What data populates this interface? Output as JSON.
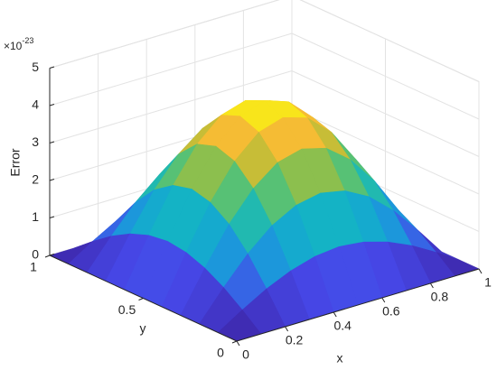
{
  "chart_data": {
    "type": "surface3d",
    "zlabel": "Error",
    "xlabel": "x",
    "ylabel": "y",
    "zexponent": {
      "base": "×10",
      "power": "-23"
    },
    "x": [
      0,
      0.1,
      0.2,
      0.3,
      0.4,
      0.5,
      0.6,
      0.7,
      0.8,
      0.9,
      1
    ],
    "y": [
      0,
      0.1,
      0.2,
      0.3,
      0.4,
      0.5,
      0.6,
      0.7,
      0.8,
      0.9,
      1
    ],
    "z": [
      [
        0,
        0,
        0,
        0,
        0,
        0,
        0,
        0,
        0,
        0,
        0
      ],
      [
        0,
        0.41,
        0.78,
        1.07,
        1.26,
        1.33,
        1.26,
        1.07,
        0.78,
        0.41,
        0
      ],
      [
        0,
        0.78,
        1.49,
        2.05,
        2.4,
        2.53,
        2.4,
        2.05,
        1.49,
        0.78,
        0
      ],
      [
        0,
        1.07,
        2.05,
        2.81,
        3.31,
        3.48,
        3.31,
        2.81,
        2.05,
        1.07,
        0
      ],
      [
        0,
        1.26,
        2.4,
        3.31,
        3.89,
        4.09,
        3.89,
        3.31,
        2.4,
        1.26,
        0
      ],
      [
        0,
        1.33,
        2.53,
        3.48,
        4.09,
        4.3,
        4.09,
        3.48,
        2.53,
        1.33,
        0
      ],
      [
        0,
        1.26,
        2.4,
        3.31,
        3.89,
        4.09,
        3.89,
        3.31,
        2.4,
        1.26,
        0
      ],
      [
        0,
        1.07,
        2.05,
        2.81,
        3.31,
        3.48,
        3.31,
        2.81,
        2.05,
        1.07,
        0
      ],
      [
        0,
        0.78,
        1.49,
        2.05,
        2.4,
        2.53,
        2.4,
        2.05,
        1.49,
        0.78,
        0
      ],
      [
        0,
        0.41,
        0.78,
        1.07,
        1.26,
        1.33,
        1.26,
        1.07,
        0.78,
        0.41,
        0
      ],
      [
        0,
        0,
        0,
        0,
        0,
        0,
        0,
        0,
        0,
        0,
        0
      ]
    ],
    "xlim": [
      0,
      1
    ],
    "ylim": [
      0,
      1
    ],
    "zlim": [
      0,
      5
    ],
    "xticks": [
      0,
      0.2,
      0.4,
      0.6,
      0.8,
      1
    ],
    "yticks": [
      0,
      0.5,
      1
    ],
    "zticks": [
      0,
      1,
      2,
      3,
      4,
      5
    ],
    "grid": true,
    "colormap": [
      "#3e26a8",
      "#4648e8",
      "#1e90e0",
      "#12b2c8",
      "#35c38f",
      "#a6be3a",
      "#f5bb34",
      "#f9fb0e"
    ]
  }
}
